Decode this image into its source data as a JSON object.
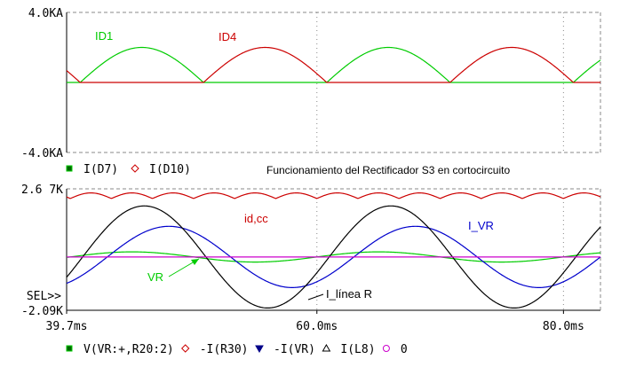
{
  "window": {
    "background": "#ffffff"
  },
  "chart_data": [
    {
      "type": "line",
      "panel": "top",
      "xlim": [
        39.7,
        83.0
      ],
      "ylim": [
        -4.0,
        4.0
      ],
      "ytick_labels": [
        "4.0KA",
        "-4.0KA"
      ],
      "grid": true,
      "annotations": [
        {
          "text": "ID1",
          "color": "#00cc00"
        },
        {
          "text": "ID4",
          "color": "#cc0000"
        }
      ],
      "series": [
        {
          "name": "I(D7)",
          "color": "#00cc00",
          "marker": "filled-square",
          "shape": "half-wave-positive",
          "amplitude": 2.0,
          "period_ms": 20,
          "phase_ms": 40.8
        },
        {
          "name": "I(D10)",
          "color": "#cc0000",
          "marker": "diamond",
          "shape": "half-wave-positive",
          "amplitude": 2.0,
          "period_ms": 20,
          "phase_ms": 50.8
        }
      ],
      "legend_title": "Funcionamiento del Rectificador S3 en cortocircuito"
    },
    {
      "type": "line",
      "panel": "bottom",
      "xlim": [
        39.7,
        83.0
      ],
      "ylim": [
        -2.09,
        2.67
      ],
      "xtick_labels": [
        "39.7ms",
        "60.0ms",
        "80.0ms"
      ],
      "xtick_values": [
        39.7,
        60.0,
        80.0
      ],
      "ytick_labels": [
        "2.6 7K",
        "-2.09K"
      ],
      "sel_label": "SEL>>",
      "grid": true,
      "annotations": [
        {
          "text": "id,cc",
          "color": "#cc0000"
        },
        {
          "text": "I_VR",
          "color": "#0000cc"
        },
        {
          "text": "VR",
          "color": "#00cc00"
        },
        {
          "text": "I_línea R",
          "color": "#000000"
        }
      ],
      "series": [
        {
          "name": "V(VR:+,R20:2)",
          "color": "#00cc00",
          "marker": "filled-square",
          "shape": "sine",
          "amplitude": 0.2,
          "offset": 0.0,
          "period_ms": 20,
          "peak_ms": 45.0
        },
        {
          "name": "-I(R30)",
          "color": "#cc0000",
          "marker": "diamond",
          "shape": "ripple",
          "amplitude": 0.22,
          "offset": 2.4,
          "period_ms": 3.333
        },
        {
          "name": "-I(VR)",
          "color": "#0000cc",
          "marker": "filled-triangle",
          "shape": "sine",
          "amplitude": 1.2,
          "offset": 0.0,
          "period_ms": 20,
          "peak_ms": 48.0
        },
        {
          "name": "I(L8)",
          "color": "#000000",
          "marker": "triangle",
          "shape": "sine",
          "amplitude": 2.0,
          "offset": 0.0,
          "period_ms": 20,
          "peak_ms": 46.0
        },
        {
          "name": "0",
          "color": "#cc00cc",
          "marker": "circle",
          "shape": "constant",
          "offset": 0.0
        }
      ]
    }
  ]
}
